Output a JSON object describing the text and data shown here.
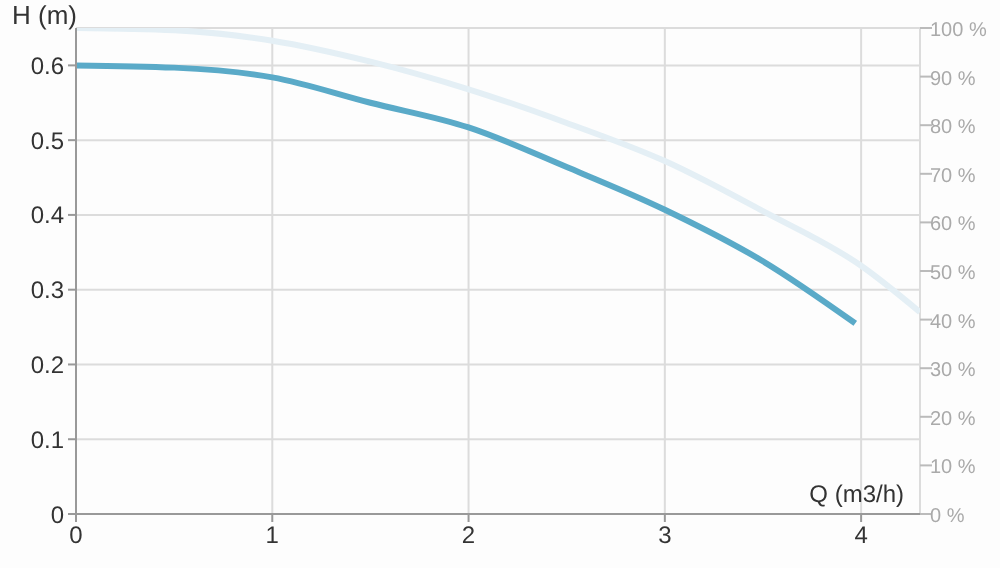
{
  "chart_data": {
    "type": "line",
    "xlabel": "Q (m3/h)",
    "ylabel": "H (m)",
    "xlim": [
      0,
      4.3
    ],
    "xticks": [
      0,
      1,
      2,
      3,
      4
    ],
    "ylim": [
      0,
      0.65
    ],
    "yticks": [
      0,
      0.1,
      0.2,
      0.3,
      0.4,
      0.5,
      0.6
    ],
    "y2lim": [
      0,
      100
    ],
    "y2ticks": [
      {
        "value": 0,
        "label": "0 %"
      },
      {
        "value": 10,
        "label": "10 %"
      },
      {
        "value": 20,
        "label": "20 %"
      },
      {
        "value": 30,
        "label": "30 %"
      },
      {
        "value": 40,
        "label": "40 %"
      },
      {
        "value": 50,
        "label": "50 %"
      },
      {
        "value": 60,
        "label": "60 %"
      },
      {
        "value": 70,
        "label": "70 %"
      },
      {
        "value": 80,
        "label": "80 %"
      },
      {
        "value": 90,
        "label": "90 %"
      },
      {
        "value": 100,
        "label": "100 %"
      }
    ],
    "grid": true,
    "marker": "none",
    "line_style": "solid",
    "series": [
      {
        "color": "#e4eff5",
        "x": [
          0,
          0.5,
          1,
          1.5,
          2,
          2.5,
          3,
          3.5,
          4,
          4.3
        ],
        "values": [
          0.65,
          0.647,
          0.633,
          0.605,
          0.568,
          0.523,
          0.472,
          0.405,
          0.332,
          0.27
        ]
      },
      {
        "color": "#5aaac8",
        "x": [
          0,
          0.5,
          1,
          1.5,
          2,
          2.5,
          3,
          3.5,
          3.97
        ],
        "values": [
          0.6,
          0.597,
          0.584,
          0.55,
          0.517,
          0.464,
          0.407,
          0.338,
          0.255
        ]
      }
    ]
  }
}
